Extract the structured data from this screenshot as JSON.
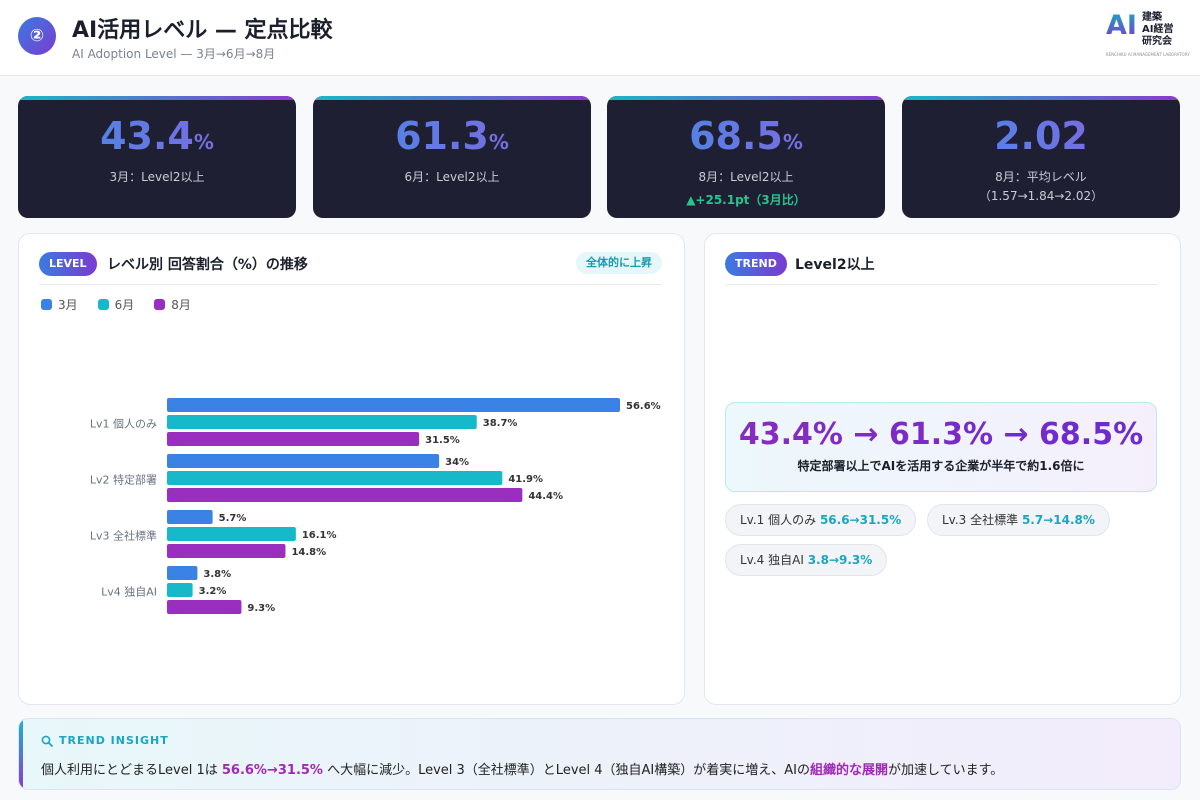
{
  "header": {
    "badge": "②",
    "title": "AI活用レベル — 定点比較",
    "subtitle": "AI Adoption Level — 3月→6月→8月",
    "logo_mark": "AI",
    "logo_text": "建築\nAI経営\n研究会",
    "logo_small": "KENCHIKU AI MANAGEMENT LABORATORY"
  },
  "stats": [
    {
      "value": "43.4",
      "unit": "%",
      "label": "3月：Level2以上"
    },
    {
      "value": "61.3",
      "unit": "%",
      "label": "6月：Level2以上"
    },
    {
      "value": "68.5",
      "unit": "%",
      "label": "8月：Level2以上",
      "delta": "▲+25.1pt（3月比）"
    },
    {
      "value": "2.02",
      "unit": "",
      "label": "8月：平均レベル",
      "sub": "（1.57→1.84→2.02）"
    }
  ],
  "left_panel": {
    "pill": "LEVEL",
    "title": "レベル別 回答割合（%）の推移",
    "tag": "全体的に上昇"
  },
  "right_panel": {
    "pill": "TREND",
    "title": "Level2以上",
    "headline": "43.4% → 61.3% → 68.5%",
    "caption": "特定部署以上でAIを活用する企業が半年で約1.6倍に",
    "chips": [
      {
        "label": "Lv.1 個人のみ ",
        "value": "56.6→31.5%"
      },
      {
        "label": "Lv.3 全社標準 ",
        "value": "5.7→14.8%"
      },
      {
        "label": "Lv.4 独自AI ",
        "value": "3.8→9.3%"
      }
    ]
  },
  "chart_data": {
    "type": "bar",
    "orientation": "horizontal",
    "categories": [
      "Lv1 個人のみ",
      "Lv2 特定部署",
      "Lv3 全社標準",
      "Lv4 独自AI"
    ],
    "series": [
      {
        "name": "3月",
        "color": "#3b82e6",
        "values": [
          56.6,
          34,
          5.7,
          3.8
        ],
        "labels": [
          "56.6%",
          "34%",
          "5.7%",
          "3.8%"
        ]
      },
      {
        "name": "6月",
        "color": "#17b8c9",
        "values": [
          38.7,
          41.9,
          16.1,
          3.2
        ],
        "labels": [
          "38.7%",
          "41.9%",
          "16.1%",
          "3.2%"
        ]
      },
      {
        "name": "8月",
        "color": "#9a2fbf",
        "values": [
          31.5,
          44.4,
          14.8,
          9.3
        ],
        "labels": [
          "31.5%",
          "44.4%",
          "14.8%",
          "9.3%"
        ]
      }
    ],
    "xlim": [
      0,
      56.6
    ],
    "legend_position": "top-left",
    "grid": false
  },
  "insight": {
    "head": "TREND INSIGHT",
    "icon": "magnifier-icon",
    "text_1": "個人利用にとどまるLevel 1は ",
    "hl_1": "56.6%→31.5%",
    "text_2": " へ大幅に減少。Level 3（全社標準）とLevel 4（独自AI構築）が着実に増え、AIの",
    "hl_2": "組織的な展開",
    "text_3": "が加速しています。"
  }
}
